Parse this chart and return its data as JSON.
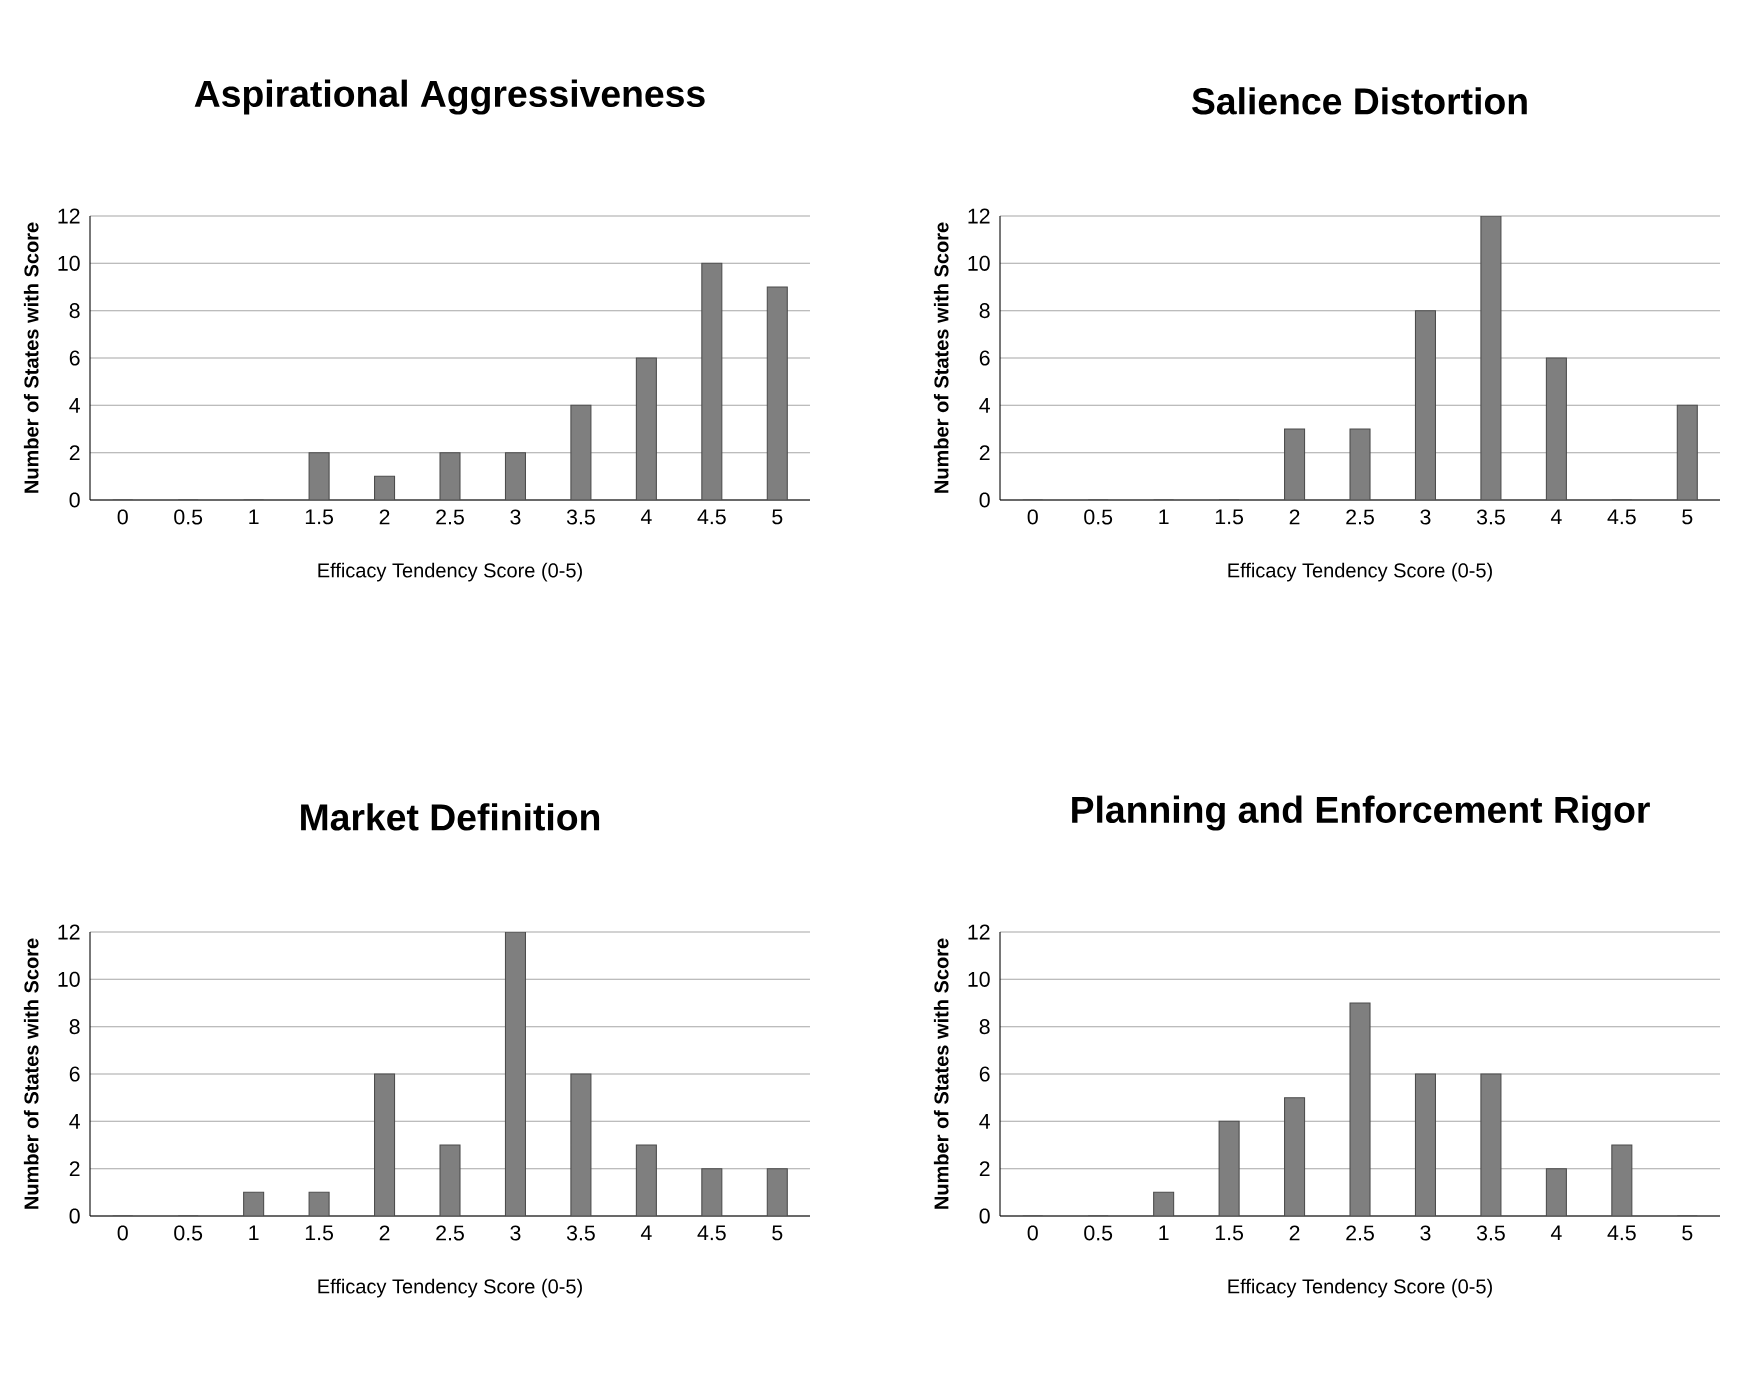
{
  "chart_data": [
    {
      "type": "bar",
      "title": "Aspirational Aggressiveness",
      "xlabel": "Efficacy Tendency Score (0-5)",
      "ylabel": "Number of States with Score",
      "categories": [
        "0",
        "0.5",
        "1",
        "1.5",
        "2",
        "2.5",
        "3",
        "3.5",
        "4",
        "4.5",
        "5"
      ],
      "values": [
        0,
        0,
        0,
        2,
        1,
        2,
        2,
        4,
        6,
        10,
        9
      ],
      "color": "#7f7f7f",
      "ylim": [
        0,
        12
      ],
      "yticks": [
        0,
        2,
        4,
        6,
        8,
        10,
        12
      ],
      "grid": "y"
    },
    {
      "type": "bar",
      "title": "Salience Distortion",
      "xlabel": "Efficacy Tendency Score (0-5)",
      "ylabel": "Number of States with Score",
      "categories": [
        "0",
        "0.5",
        "1",
        "1.5",
        "2",
        "2.5",
        "3",
        "3.5",
        "4",
        "4.5",
        "5"
      ],
      "values": [
        0,
        0,
        0,
        0,
        3,
        3,
        8,
        12,
        6,
        0,
        4
      ],
      "color": "#7f7f7f",
      "ylim": [
        0,
        12
      ],
      "yticks": [
        0,
        2,
        4,
        6,
        8,
        10,
        12
      ],
      "grid": "y"
    },
    {
      "type": "bar",
      "title": "Market Definition",
      "xlabel": "Efficacy Tendency Score (0-5)",
      "ylabel": "Number of States with Score",
      "categories": [
        "0",
        "0.5",
        "1",
        "1.5",
        "2",
        "2.5",
        "3",
        "3.5",
        "4",
        "4.5",
        "5"
      ],
      "values": [
        0,
        0,
        1,
        1,
        6,
        3,
        12,
        6,
        3,
        2,
        2
      ],
      "color": "#7f7f7f",
      "ylim": [
        0,
        12
      ],
      "yticks": [
        0,
        2,
        4,
        6,
        8,
        10,
        12
      ],
      "grid": "y"
    },
    {
      "type": "bar",
      "title": "Planning and Enforcement Rigor",
      "xlabel": "Efficacy Tendency Score (0-5)",
      "ylabel": "Number of States with Score",
      "categories": [
        "0",
        "0.5",
        "1",
        "1.5",
        "2",
        "2.5",
        "3",
        "3.5",
        "4",
        "4.5",
        "5"
      ],
      "values": [
        0,
        0,
        1,
        4,
        5,
        9,
        6,
        6,
        2,
        3,
        0
      ],
      "color": "#7f7f7f",
      "ylim": [
        0,
        12
      ],
      "yticks": [
        0,
        2,
        4,
        6,
        8,
        10,
        12
      ],
      "grid": "y"
    }
  ]
}
